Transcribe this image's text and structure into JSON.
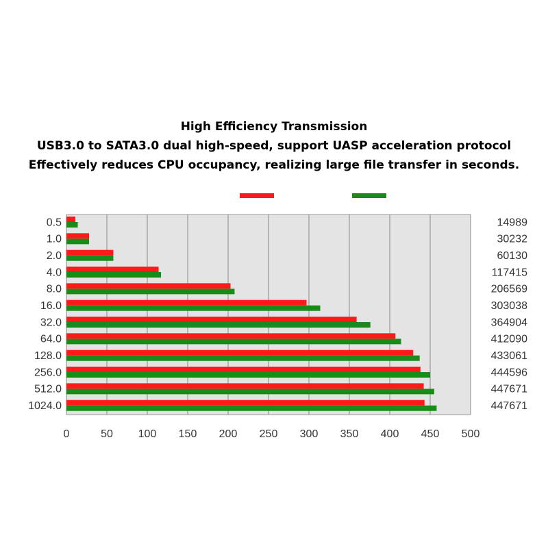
{
  "chart_data": {
    "type": "bar",
    "orientation": "horizontal",
    "title": "High Efficiency Transmission",
    "subtitle": [
      "USB3.0 to SATA3.0 dual high-speed, support UASP acceleration protocol",
      "Effectively reduces CPU occupancy, realizing large file transfer in seconds."
    ],
    "categories": [
      "0.5",
      "1.0",
      "2.0",
      "4.0",
      "8.0",
      "16.0",
      "32.0",
      "64.0",
      "128.0",
      "256.0",
      "512.0",
      "1024.0"
    ],
    "right_labels": [
      14989,
      30232,
      60130,
      117415,
      206569,
      303038,
      364904,
      412090,
      433061,
      444596,
      447671,
      447671
    ],
    "series": [
      {
        "color": "#ff1a1a",
        "values": [
          11,
          28,
          58,
          114,
          203,
          297,
          359,
          407,
          429,
          438,
          442,
          443
        ]
      },
      {
        "color": "#1a8a1a",
        "values": [
          14,
          28,
          58,
          117,
          208,
          314,
          376,
          414,
          437,
          450,
          455,
          458
        ]
      }
    ],
    "xlim": [
      0,
      500
    ],
    "xticks": [
      0,
      50,
      100,
      150,
      200,
      250,
      300,
      350,
      400,
      450,
      500
    ],
    "grid": true,
    "plot_background": "#e4e4e4"
  }
}
